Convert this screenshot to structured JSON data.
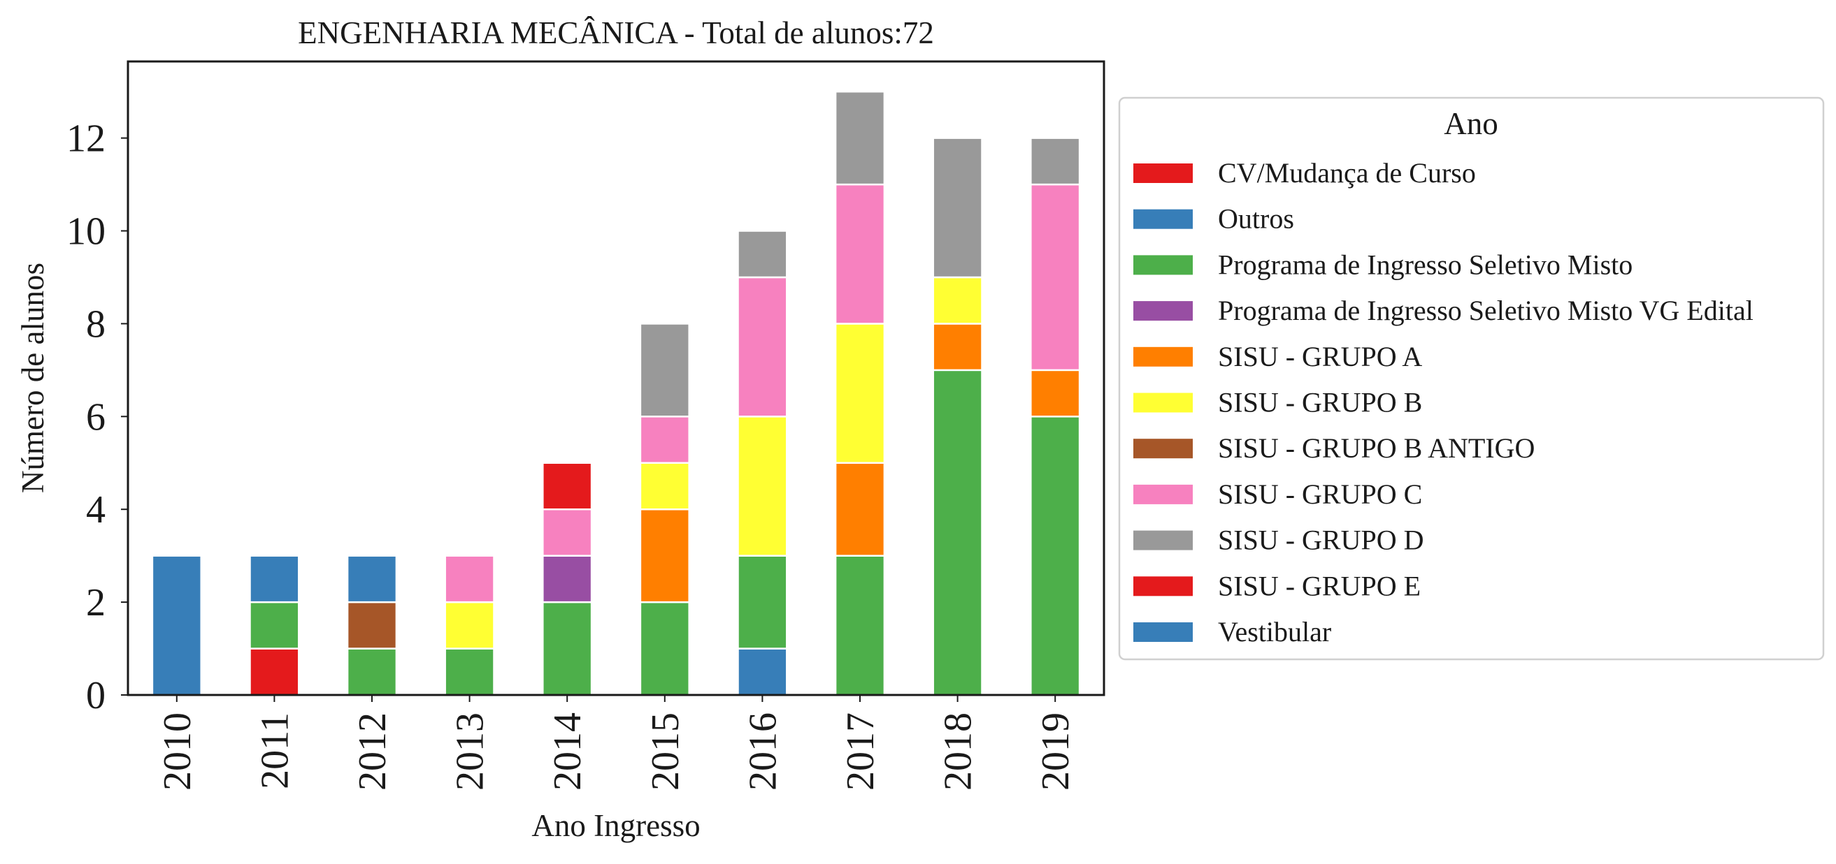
{
  "chart_data": {
    "type": "bar",
    "stacked": true,
    "title": "ENGENHARIA MECÂNICA - Total de alunos:72",
    "xlabel": "Ano Ingresso",
    "ylabel": "Número de alunos",
    "ylim": [
      0,
      13.65
    ],
    "yticks": [
      0,
      2,
      4,
      6,
      8,
      10,
      12
    ],
    "grid": false,
    "legend_title": "Ano",
    "legend_position": "right, outside plot",
    "categories": [
      "2010",
      "2011",
      "2012",
      "2013",
      "2014",
      "2015",
      "2016",
      "2017",
      "2018",
      "2019"
    ],
    "series": [
      {
        "name": "CV/Mudança de Curso",
        "color": "#e41a1c",
        "values": [
          0,
          1,
          0,
          0,
          0,
          0,
          0,
          0,
          0,
          0
        ]
      },
      {
        "name": "Outros",
        "color": "#377eb8",
        "values": [
          0,
          0,
          0,
          0,
          0,
          0,
          1,
          0,
          0,
          0
        ]
      },
      {
        "name": "Programa de Ingresso Seletivo Misto",
        "color": "#4daf4a",
        "values": [
          0,
          1,
          1,
          1,
          2,
          2,
          2,
          3,
          7,
          6
        ]
      },
      {
        "name": "Programa de Ingresso Seletivo Misto VG Edital",
        "color": "#984ea3",
        "values": [
          0,
          0,
          0,
          0,
          1,
          0,
          0,
          0,
          0,
          0
        ]
      },
      {
        "name": "SISU - GRUPO A",
        "color": "#ff7f00",
        "values": [
          0,
          0,
          0,
          0,
          0,
          2,
          0,
          2,
          1,
          1
        ]
      },
      {
        "name": "SISU - GRUPO B",
        "color": "#ffff33",
        "values": [
          0,
          0,
          0,
          1,
          0,
          1,
          3,
          3,
          1,
          0
        ]
      },
      {
        "name": "SISU - GRUPO B ANTIGO",
        "color": "#a65628",
        "values": [
          0,
          0,
          1,
          0,
          0,
          0,
          0,
          0,
          0,
          0
        ]
      },
      {
        "name": "SISU - GRUPO C",
        "color": "#f781bf",
        "values": [
          0,
          0,
          0,
          1,
          1,
          1,
          3,
          3,
          0,
          4
        ]
      },
      {
        "name": "SISU - GRUPO D",
        "color": "#999999",
        "values": [
          0,
          0,
          0,
          0,
          0,
          2,
          1,
          2,
          3,
          1
        ]
      },
      {
        "name": "SISU - GRUPO E",
        "color": "#e41a1c",
        "values": [
          0,
          0,
          0,
          0,
          1,
          0,
          0,
          0,
          0,
          0
        ]
      },
      {
        "name": "Vestibular",
        "color": "#377eb8",
        "values": [
          3,
          1,
          1,
          0,
          0,
          0,
          0,
          0,
          0,
          0
        ]
      }
    ]
  }
}
